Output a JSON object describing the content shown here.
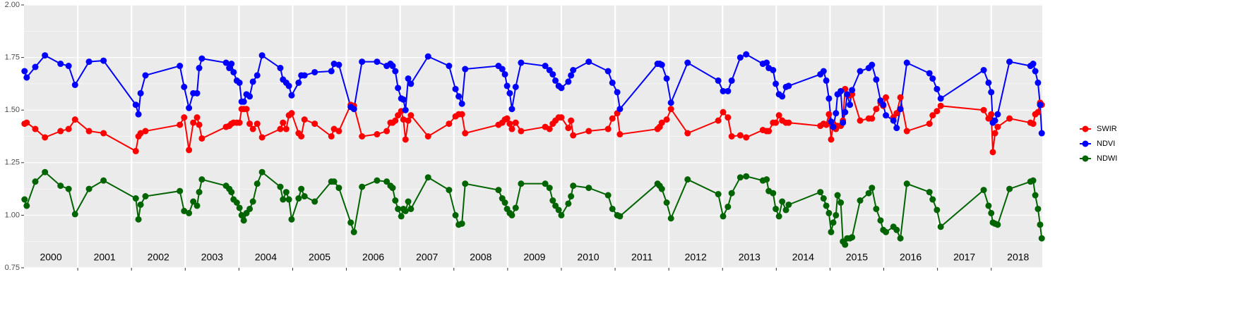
{
  "chart_data": {
    "type": "line",
    "x": [
      2000.01,
      2000.05,
      2000.21,
      2000.39,
      2000.68,
      2000.83,
      2000.95,
      2001.21,
      2001.48,
      2002.08,
      2002.13,
      2002.17,
      2002.26,
      2002.9,
      2002.98,
      2003.07,
      2003.15,
      2003.22,
      2003.26,
      2003.31,
      2003.76,
      2003.82,
      2003.86,
      2003.9,
      2003.96,
      2004.01,
      2004.05,
      2004.09,
      2004.14,
      2004.2,
      2004.26,
      2004.34,
      2004.43,
      2004.77,
      2004.82,
      2004.88,
      2004.93,
      2004.98,
      2005.11,
      2005.16,
      2005.22,
      2005.41,
      2005.72,
      2005.77,
      2005.86,
      2006.08,
      2006.14,
      2006.29,
      2006.57,
      2006.75,
      2006.82,
      2006.86,
      2006.91,
      2006.96,
      2007.02,
      2007.06,
      2007.1,
      2007.15,
      2007.2,
      2007.52,
      2007.91,
      2008.03,
      2008.09,
      2008.15,
      2008.21,
      2008.83,
      2008.9,
      2008.95,
      2008.99,
      2009.04,
      2009.08,
      2009.15,
      2009.25,
      2009.7,
      2009.78,
      2009.84,
      2009.89,
      2009.95,
      2010,
      2010.13,
      2010.18,
      2010.22,
      2010.51,
      2010.87,
      2010.95,
      2011.04,
      2011.09,
      2011.79,
      2011.83,
      2011.87,
      2011.96,
      2012.04,
      2012.35,
      2012.92,
      2013.01,
      2013.1,
      2013.17,
      2013.33,
      2013.44,
      2013.75,
      2013.82,
      2013.86,
      2013.94,
      2013.99,
      2014.05,
      2014.11,
      2014.18,
      2014.23,
      2014.82,
      2014.88,
      2014.93,
      2014.98,
      2015.02,
      2015.06,
      2015.11,
      2015.14,
      2015.2,
      2015.24,
      2015.28,
      2015.32,
      2015.37,
      2015.41,
      2015.56,
      2015.72,
      2015.78,
      2015.86,
      2015.94,
      2015.99,
      2016.04,
      2016.18,
      2016.24,
      2016.31,
      2016.43,
      2016.85,
      2016.91,
      2016.99,
      2017.06,
      2017.86,
      2017.95,
      2018,
      2018.03,
      2018.07,
      2018.12,
      2018.34,
      2018.73,
      2018.78,
      2018.82,
      2018.87,
      2018.91,
      2018.94
    ],
    "series": [
      {
        "name": "SWIR",
        "color": "#ff0000",
        "values": [
          1.435,
          1.44,
          1.41,
          1.37,
          1.4,
          1.41,
          1.455,
          1.4,
          1.39,
          1.305,
          1.375,
          1.39,
          1.4,
          1.43,
          1.465,
          1.31,
          1.44,
          1.465,
          1.43,
          1.365,
          1.42,
          1.425,
          1.435,
          1.44,
          1.44,
          1.44,
          1.505,
          1.505,
          1.505,
          1.435,
          1.41,
          1.435,
          1.37,
          1.41,
          1.44,
          1.41,
          1.475,
          1.485,
          1.39,
          1.375,
          1.455,
          1.435,
          1.375,
          1.41,
          1.4,
          1.525,
          1.52,
          1.375,
          1.385,
          1.4,
          1.44,
          1.44,
          1.45,
          1.475,
          1.495,
          1.455,
          1.36,
          1.45,
          1.475,
          1.375,
          1.435,
          1.47,
          1.48,
          1.48,
          1.39,
          1.43,
          1.44,
          1.455,
          1.46,
          1.435,
          1.41,
          1.44,
          1.4,
          1.42,
          1.41,
          1.435,
          1.45,
          1.465,
          1.465,
          1.415,
          1.45,
          1.38,
          1.4,
          1.41,
          1.46,
          1.485,
          1.385,
          1.41,
          1.42,
          1.44,
          1.455,
          1.505,
          1.39,
          1.45,
          1.49,
          1.465,
          1.375,
          1.38,
          1.37,
          1.405,
          1.4,
          1.4,
          1.44,
          1.44,
          1.475,
          1.45,
          1.44,
          1.44,
          1.425,
          1.435,
          1.43,
          1.48,
          1.36,
          1.435,
          1.41,
          1.425,
          1.425,
          1.45,
          1.6,
          1.575,
          1.57,
          1.575,
          1.45,
          1.46,
          1.46,
          1.505,
          1.535,
          1.52,
          1.56,
          1.465,
          1.485,
          1.56,
          1.4,
          1.435,
          1.475,
          1.495,
          1.52,
          1.5,
          1.46,
          1.48,
          1.3,
          1.39,
          1.42,
          1.46,
          1.44,
          1.435,
          1.48,
          1.49,
          1.535,
          1.525
        ]
      },
      {
        "name": "NDVI",
        "color": "#0000ff",
        "values": [
          1.685,
          1.655,
          1.705,
          1.76,
          1.72,
          1.71,
          1.62,
          1.73,
          1.735,
          1.525,
          1.48,
          1.58,
          1.665,
          1.71,
          1.61,
          1.51,
          1.58,
          1.58,
          1.7,
          1.745,
          1.725,
          1.7,
          1.72,
          1.68,
          1.64,
          1.63,
          1.54,
          1.54,
          1.575,
          1.565,
          1.635,
          1.665,
          1.76,
          1.7,
          1.645,
          1.63,
          1.615,
          1.57,
          1.63,
          1.665,
          1.665,
          1.68,
          1.685,
          1.72,
          1.715,
          1.515,
          1.505,
          1.73,
          1.73,
          1.71,
          1.72,
          1.71,
          1.685,
          1.605,
          1.555,
          1.55,
          1.5,
          1.65,
          1.625,
          1.755,
          1.71,
          1.6,
          1.565,
          1.53,
          1.695,
          1.71,
          1.695,
          1.67,
          1.615,
          1.58,
          1.505,
          1.61,
          1.725,
          1.71,
          1.69,
          1.67,
          1.64,
          1.615,
          1.605,
          1.635,
          1.665,
          1.69,
          1.73,
          1.685,
          1.63,
          1.585,
          1.505,
          1.72,
          1.72,
          1.715,
          1.65,
          1.535,
          1.725,
          1.64,
          1.59,
          1.59,
          1.64,
          1.75,
          1.765,
          1.72,
          1.725,
          1.7,
          1.69,
          1.625,
          1.575,
          1.565,
          1.61,
          1.615,
          1.67,
          1.685,
          1.64,
          1.555,
          1.445,
          1.42,
          1.485,
          1.575,
          1.59,
          1.44,
          1.49,
          1.575,
          1.525,
          1.595,
          1.685,
          1.7,
          1.715,
          1.645,
          1.545,
          1.525,
          1.475,
          1.45,
          1.415,
          1.505,
          1.725,
          1.675,
          1.65,
          1.6,
          1.555,
          1.69,
          1.63,
          1.585,
          1.44,
          1.45,
          1.48,
          1.73,
          1.71,
          1.72,
          1.685,
          1.63,
          1.525,
          1.39
        ]
      },
      {
        "name": "NDWI",
        "color": "#006400",
        "values": [
          1.075,
          1.045,
          1.16,
          1.205,
          1.14,
          1.125,
          1.005,
          1.125,
          1.165,
          1.08,
          0.98,
          1.05,
          1.09,
          1.115,
          1.02,
          1.01,
          1.065,
          1.045,
          1.11,
          1.17,
          1.14,
          1.125,
          1.11,
          1.075,
          1.06,
          1.035,
          1.0,
          0.975,
          1.01,
          1.03,
          1.065,
          1.15,
          1.205,
          1.135,
          1.075,
          1.11,
          1.075,
          0.98,
          1.08,
          1.125,
          1.09,
          1.065,
          1.16,
          1.16,
          1.13,
          0.965,
          0.92,
          1.135,
          1.165,
          1.16,
          1.14,
          1.13,
          1.07,
          1.03,
          0.995,
          1.03,
          1.02,
          1.065,
          1.03,
          1.18,
          1.12,
          1.0,
          0.955,
          0.96,
          1.15,
          1.12,
          1.08,
          1.06,
          1.03,
          1.01,
          1.0,
          1.035,
          1.15,
          1.15,
          1.13,
          1.07,
          1.045,
          1.025,
          1.0,
          1.055,
          1.09,
          1.14,
          1.13,
          1.095,
          1.03,
          1.0,
          0.995,
          1.15,
          1.14,
          1.125,
          1.06,
          0.985,
          1.17,
          1.1,
          0.995,
          1.04,
          1.105,
          1.18,
          1.185,
          1.165,
          1.17,
          1.115,
          1.105,
          1.03,
          0.995,
          1.065,
          1.025,
          1.05,
          1.11,
          1.08,
          1.045,
          1.01,
          0.92,
          0.965,
          1.0,
          1.095,
          1.06,
          0.875,
          0.86,
          0.89,
          0.89,
          0.895,
          1.07,
          1.105,
          1.13,
          1.03,
          0.975,
          0.93,
          0.92,
          0.945,
          0.93,
          0.89,
          1.15,
          1.11,
          1.075,
          1.025,
          0.945,
          1.12,
          1.045,
          1.01,
          0.965,
          0.96,
          0.955,
          1.125,
          1.16,
          1.165,
          1.095,
          1.03,
          0.955,
          0.89
        ]
      }
    ],
    "xlim": [
      2000,
      2018.95
    ],
    "xticks": [
      2001,
      2002,
      2003,
      2004,
      2005,
      2006,
      2007,
      2008,
      2009,
      2010,
      2011,
      2012,
      2013,
      2014,
      2015,
      2016,
      2017,
      2018
    ],
    "year_labels": [
      {
        "value": 2000.5,
        "label": "2000"
      },
      {
        "value": 2001.5,
        "label": "2001"
      },
      {
        "value": 2002.5,
        "label": "2002"
      },
      {
        "value": 2003.5,
        "label": "2003"
      },
      {
        "value": 2004.5,
        "label": "2004"
      },
      {
        "value": 2005.5,
        "label": "2005"
      },
      {
        "value": 2006.5,
        "label": "2006"
      },
      {
        "value": 2007.5,
        "label": "2007"
      },
      {
        "value": 2008.5,
        "label": "2008"
      },
      {
        "value": 2009.5,
        "label": "2009"
      },
      {
        "value": 2010.5,
        "label": "2010"
      },
      {
        "value": 2011.5,
        "label": "2011"
      },
      {
        "value": 2012.5,
        "label": "2012"
      },
      {
        "value": 2013.5,
        "label": "2013"
      },
      {
        "value": 2014.5,
        "label": "2014"
      },
      {
        "value": 2015.5,
        "label": "2015"
      },
      {
        "value": 2016.5,
        "label": "2016"
      },
      {
        "value": 2017.5,
        "label": "2017"
      },
      {
        "value": 2018.5,
        "label": "2018"
      }
    ],
    "ylim": [
      0.75,
      2
    ],
    "yticks": [
      {
        "value": 0.75,
        "label": "0.75"
      },
      {
        "value": 1,
        "label": "1.00"
      },
      1.25,
      {
        "value": 1.5,
        "label": "1.50"
      },
      1.75,
      {
        "value": 2,
        "label": "2.00"
      }
    ],
    "grid": true,
    "legend": "right"
  }
}
